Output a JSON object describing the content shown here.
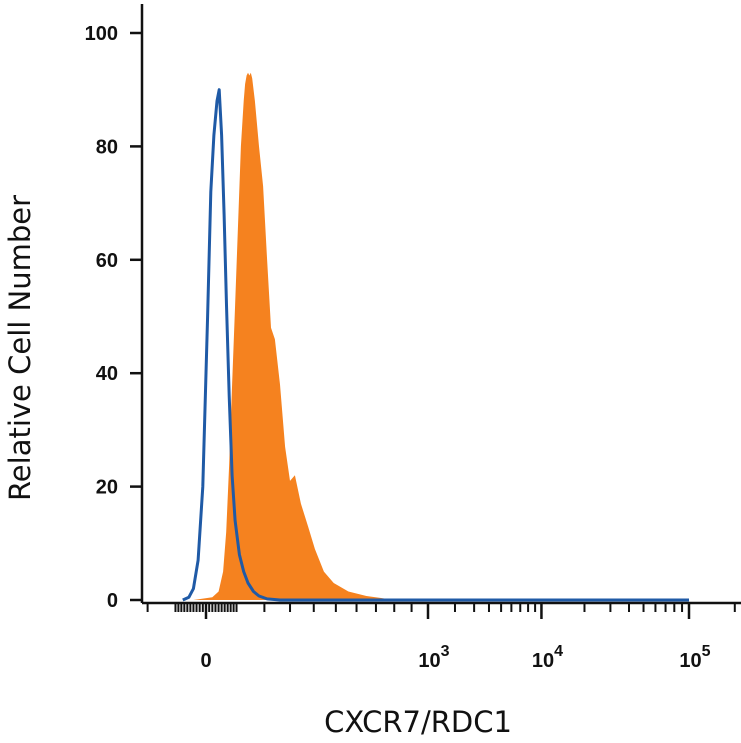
{
  "chart_data": {
    "type": "area",
    "title": "",
    "xlabel": "CXCR7/RDC1",
    "ylabel": "Relative Cell Number",
    "x_scale": "biexponential",
    "x_tick_labels": [
      {
        "value": 0,
        "base": "0",
        "exp": ""
      },
      {
        "value": 1000,
        "base": "10",
        "exp": "3"
      },
      {
        "value": 10000,
        "base": "10",
        "exp": "4"
      },
      {
        "value": 100000,
        "base": "10",
        "exp": "5"
      }
    ],
    "y_ticks": [
      0,
      20,
      40,
      60,
      80,
      100
    ],
    "ylim": [
      0,
      100
    ],
    "grid": false,
    "series": [
      {
        "style": "filled",
        "color": "#F5821F",
        "points": [
          [
            -40,
            0
          ],
          [
            20,
            0.5
          ],
          [
            40,
            1.5
          ],
          [
            55,
            5
          ],
          [
            65,
            12
          ],
          [
            75,
            24
          ],
          [
            85,
            38
          ],
          [
            95,
            52
          ],
          [
            105,
            66
          ],
          [
            115,
            80
          ],
          [
            125,
            88
          ],
          [
            130,
            91
          ],
          [
            135,
            92.5
          ],
          [
            140,
            93
          ],
          [
            145,
            92.5
          ],
          [
            150,
            93
          ],
          [
            155,
            92
          ],
          [
            165,
            88
          ],
          [
            180,
            80
          ],
          [
            195,
            73
          ],
          [
            210,
            60
          ],
          [
            225,
            48
          ],
          [
            240,
            46
          ],
          [
            260,
            38
          ],
          [
            280,
            27
          ],
          [
            300,
            21
          ],
          [
            320,
            22
          ],
          [
            345,
            17
          ],
          [
            375,
            13
          ],
          [
            405,
            9
          ],
          [
            445,
            5
          ],
          [
            490,
            3
          ],
          [
            560,
            1.5
          ],
          [
            650,
            0.7
          ],
          [
            760,
            0.2
          ],
          [
            860,
            0
          ]
        ]
      },
      {
        "style": "line",
        "color": "#1F5AA6",
        "points": [
          [
            -75,
            0
          ],
          [
            -55,
            0.5
          ],
          [
            -40,
            2
          ],
          [
            -25,
            7
          ],
          [
            -10,
            20
          ],
          [
            5,
            50
          ],
          [
            15,
            72
          ],
          [
            25,
            82
          ],
          [
            35,
            88
          ],
          [
            42,
            90
          ],
          [
            50,
            82
          ],
          [
            58,
            68
          ],
          [
            66,
            52
          ],
          [
            75,
            36
          ],
          [
            85,
            22
          ],
          [
            95,
            14
          ],
          [
            110,
            8
          ],
          [
            125,
            5
          ],
          [
            140,
            3
          ],
          [
            160,
            1.5
          ],
          [
            180,
            0.7
          ],
          [
            210,
            0.2
          ],
          [
            260,
            0
          ],
          [
            100000,
            0
          ]
        ]
      }
    ]
  }
}
